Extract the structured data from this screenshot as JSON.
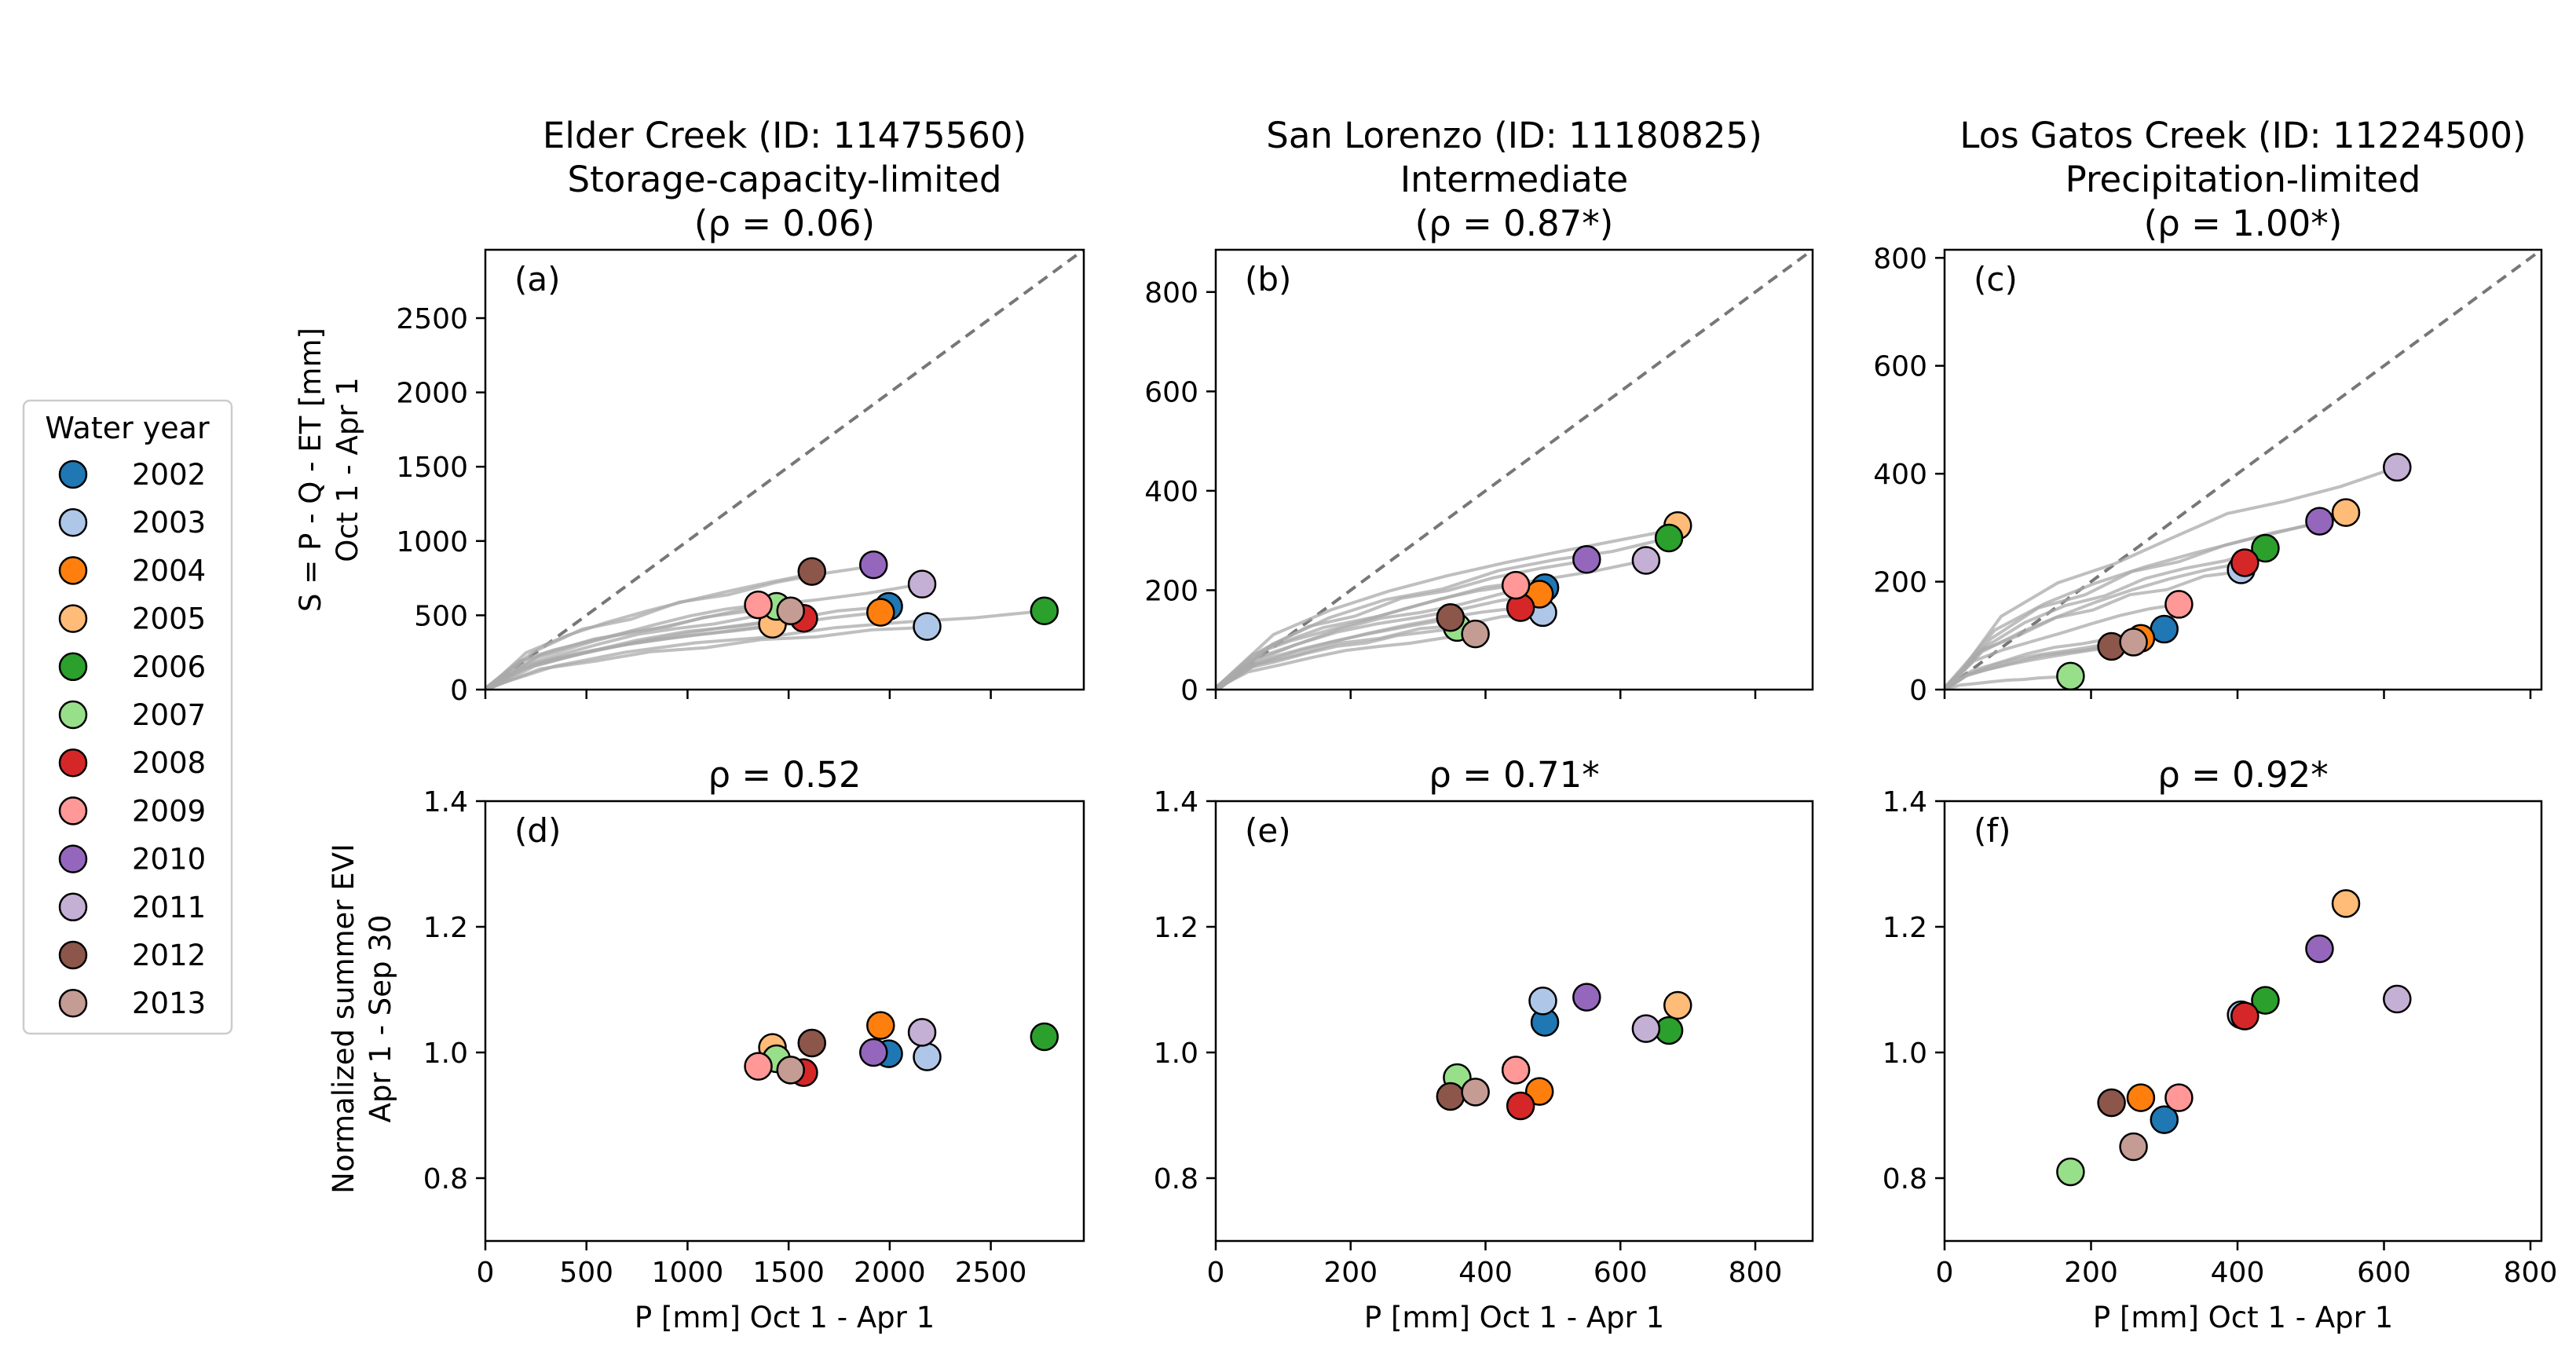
{
  "legend": {
    "title": "Water year",
    "placement": "left",
    "entries": [
      {
        "label": "2002",
        "color": "#1f77b4"
      },
      {
        "label": "2003",
        "color": "#aec7e8"
      },
      {
        "label": "2004",
        "color": "#ff7f0e"
      },
      {
        "label": "2005",
        "color": "#ffbb78"
      },
      {
        "label": "2006",
        "color": "#2ca02c"
      },
      {
        "label": "2007",
        "color": "#98df8a"
      },
      {
        "label": "2008",
        "color": "#d62728"
      },
      {
        "label": "2009",
        "color": "#ff9896"
      },
      {
        "label": "2010",
        "color": "#9467bd"
      },
      {
        "label": "2011",
        "color": "#c5b0d5"
      },
      {
        "label": "2012",
        "color": "#8c564b"
      },
      {
        "label": "2013",
        "color": "#c49c94"
      }
    ]
  },
  "row_ylabels": {
    "top": [
      "S = P - Q - ET [mm]",
      "Oct 1 - Apr 1"
    ],
    "bottom": [
      "Normalized summer EVI",
      "Apr 1 - Sep 30"
    ]
  },
  "chart_data": [
    {
      "panel": "(a)",
      "type": "scatter",
      "title": [
        "Elder Creek (ID: 11475560)",
        "Storage-capacity-limited",
        "(ρ = 0.06)"
      ],
      "xlim": [
        0,
        2960
      ],
      "ylim": [
        0,
        2960
      ],
      "xticks": [
        0,
        500,
        1000,
        1500,
        2000,
        2500
      ],
      "yticks": [
        0,
        500,
        1000,
        1500,
        2000,
        2500
      ],
      "xlabel": "",
      "one_to_one_line": true,
      "points": [
        {
          "year": "2002",
          "x": 1995,
          "y": 560
        },
        {
          "year": "2003",
          "x": 2185,
          "y": 425
        },
        {
          "year": "2004",
          "x": 1955,
          "y": 520
        },
        {
          "year": "2005",
          "x": 1420,
          "y": 440
        },
        {
          "year": "2006",
          "x": 2765,
          "y": 530
        },
        {
          "year": "2007",
          "x": 1440,
          "y": 560
        },
        {
          "year": "2008",
          "x": 1575,
          "y": 480
        },
        {
          "year": "2009",
          "x": 1350,
          "y": 570
        },
        {
          "year": "2010",
          "x": 1920,
          "y": 840
        },
        {
          "year": "2011",
          "x": 2160,
          "y": 710
        },
        {
          "year": "2012",
          "x": 1615,
          "y": 795
        },
        {
          "year": "2013",
          "x": 1510,
          "y": 530
        }
      ]
    },
    {
      "panel": "(b)",
      "type": "scatter",
      "title": [
        "San Lorenzo (ID: 11180825)",
        "Intermediate",
        "(ρ = 0.87*)"
      ],
      "xlim": [
        0,
        885
      ],
      "ylim": [
        0,
        885
      ],
      "xticks": [
        0,
        200,
        400,
        600,
        800
      ],
      "yticks": [
        0,
        200,
        400,
        600,
        800
      ],
      "xlabel": "",
      "one_to_one_line": true,
      "points": [
        {
          "year": "2002",
          "x": 488,
          "y": 205
        },
        {
          "year": "2003",
          "x": 485,
          "y": 155
        },
        {
          "year": "2004",
          "x": 480,
          "y": 192
        },
        {
          "year": "2005",
          "x": 685,
          "y": 330
        },
        {
          "year": "2006",
          "x": 672,
          "y": 305
        },
        {
          "year": "2007",
          "x": 358,
          "y": 125
        },
        {
          "year": "2008",
          "x": 452,
          "y": 165
        },
        {
          "year": "2009",
          "x": 445,
          "y": 210
        },
        {
          "year": "2010",
          "x": 550,
          "y": 262
        },
        {
          "year": "2011",
          "x": 638,
          "y": 260
        },
        {
          "year": "2012",
          "x": 348,
          "y": 145
        },
        {
          "year": "2013",
          "x": 385,
          "y": 112
        }
      ]
    },
    {
      "panel": "(c)",
      "type": "scatter",
      "title": [
        "Los Gatos Creek (ID: 11224500)",
        "Precipitation-limited",
        "(ρ = 1.00*)"
      ],
      "xlim": [
        0,
        815
      ],
      "ylim": [
        0,
        815
      ],
      "xticks": [
        0,
        200,
        400,
        600,
        800
      ],
      "yticks": [
        0,
        200,
        400,
        600,
        800
      ],
      "xlabel": "",
      "one_to_one_line": true,
      "points": [
        {
          "year": "2002",
          "x": 300,
          "y": 112
        },
        {
          "year": "2003",
          "x": 405,
          "y": 222
        },
        {
          "year": "2004",
          "x": 268,
          "y": 95
        },
        {
          "year": "2005",
          "x": 548,
          "y": 328
        },
        {
          "year": "2006",
          "x": 438,
          "y": 262
        },
        {
          "year": "2007",
          "x": 172,
          "y": 25
        },
        {
          "year": "2008",
          "x": 410,
          "y": 235
        },
        {
          "year": "2009",
          "x": 320,
          "y": 158
        },
        {
          "year": "2010",
          "x": 512,
          "y": 312
        },
        {
          "year": "2011",
          "x": 618,
          "y": 412
        },
        {
          "year": "2012",
          "x": 228,
          "y": 80
        },
        {
          "year": "2013",
          "x": 258,
          "y": 88
        }
      ]
    },
    {
      "panel": "(d)",
      "type": "scatter",
      "title": [
        "ρ = 0.52"
      ],
      "xlim": [
        0,
        2960
      ],
      "ylim": [
        0.7,
        1.4
      ],
      "xticks": [
        0,
        500,
        1000,
        1500,
        2000,
        2500
      ],
      "yticks": [
        0.8,
        1.0,
        1.2,
        1.4
      ],
      "xlabel": "P [mm] Oct 1 - Apr 1",
      "one_to_one_line": false,
      "points": [
        {
          "year": "2002",
          "x": 1995,
          "y": 0.998
        },
        {
          "year": "2003",
          "x": 2185,
          "y": 0.993
        },
        {
          "year": "2004",
          "x": 1955,
          "y": 1.043
        },
        {
          "year": "2005",
          "x": 1420,
          "y": 1.008
        },
        {
          "year": "2006",
          "x": 2765,
          "y": 1.025
        },
        {
          "year": "2007",
          "x": 1440,
          "y": 0.99
        },
        {
          "year": "2008",
          "x": 1575,
          "y": 0.968
        },
        {
          "year": "2009",
          "x": 1350,
          "y": 0.978
        },
        {
          "year": "2010",
          "x": 1920,
          "y": 1.0
        },
        {
          "year": "2011",
          "x": 2160,
          "y": 1.032
        },
        {
          "year": "2012",
          "x": 1615,
          "y": 1.015
        },
        {
          "year": "2013",
          "x": 1510,
          "y": 0.972
        }
      ]
    },
    {
      "panel": "(e)",
      "type": "scatter",
      "title": [
        "ρ = 0.71*"
      ],
      "xlim": [
        0,
        885
      ],
      "ylim": [
        0.7,
        1.4
      ],
      "xticks": [
        0,
        200,
        400,
        600,
        800
      ],
      "yticks": [
        0.8,
        1.0,
        1.2,
        1.4
      ],
      "xlabel": "P [mm] Oct 1 - Apr 1",
      "one_to_one_line": false,
      "points": [
        {
          "year": "2002",
          "x": 488,
          "y": 1.048
        },
        {
          "year": "2003",
          "x": 485,
          "y": 1.082
        },
        {
          "year": "2004",
          "x": 480,
          "y": 0.938
        },
        {
          "year": "2005",
          "x": 685,
          "y": 1.075
        },
        {
          "year": "2006",
          "x": 672,
          "y": 1.035
        },
        {
          "year": "2007",
          "x": 358,
          "y": 0.96
        },
        {
          "year": "2008",
          "x": 452,
          "y": 0.915
        },
        {
          "year": "2009",
          "x": 445,
          "y": 0.972
        },
        {
          "year": "2010",
          "x": 550,
          "y": 1.088
        },
        {
          "year": "2011",
          "x": 638,
          "y": 1.038
        },
        {
          "year": "2012",
          "x": 348,
          "y": 0.93
        },
        {
          "year": "2013",
          "x": 385,
          "y": 0.937
        }
      ]
    },
    {
      "panel": "(f)",
      "type": "scatter",
      "title": [
        "ρ = 0.92*"
      ],
      "xlim": [
        0,
        815
      ],
      "ylim": [
        0.7,
        1.4
      ],
      "xticks": [
        0,
        200,
        400,
        600,
        800
      ],
      "yticks": [
        0.8,
        1.0,
        1.2,
        1.4
      ],
      "xlabel": "P [mm] Oct 1 - Apr 1",
      "one_to_one_line": false,
      "points": [
        {
          "year": "2002",
          "x": 300,
          "y": 0.893
        },
        {
          "year": "2003",
          "x": 405,
          "y": 1.06
        },
        {
          "year": "2004",
          "x": 268,
          "y": 0.928
        },
        {
          "year": "2005",
          "x": 548,
          "y": 1.237
        },
        {
          "year": "2006",
          "x": 438,
          "y": 1.083
        },
        {
          "year": "2007",
          "x": 172,
          "y": 0.81
        },
        {
          "year": "2008",
          "x": 410,
          "y": 1.058
        },
        {
          "year": "2009",
          "x": 320,
          "y": 0.928
        },
        {
          "year": "2010",
          "x": 512,
          "y": 1.165
        },
        {
          "year": "2011",
          "x": 618,
          "y": 1.085
        },
        {
          "year": "2012",
          "x": 228,
          "y": 0.92
        },
        {
          "year": "2013",
          "x": 258,
          "y": 0.85
        }
      ]
    }
  ]
}
